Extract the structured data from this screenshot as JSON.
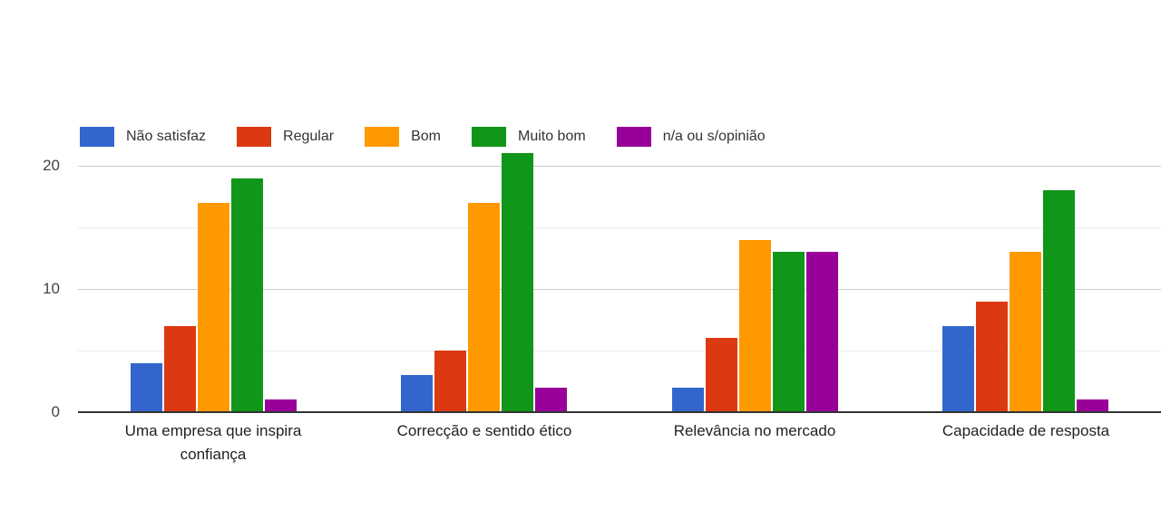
{
  "chart_data": {
    "type": "bar",
    "title": "",
    "xlabel": "",
    "ylabel": "",
    "legend_position": "top",
    "grid": true,
    "categories": [
      "Uma empresa que inspira confiança",
      "Correcção e sentido ético",
      "Relevância no mercado",
      "Capacidade de resposta"
    ],
    "series": [
      {
        "name": "Não satisfaz",
        "color": "#3366cc",
        "values": [
          4,
          3,
          2,
          7
        ]
      },
      {
        "name": "Regular",
        "color": "#dc3912",
        "values": [
          7,
          5,
          6,
          9
        ]
      },
      {
        "name": "Bom",
        "color": "#ff9900",
        "values": [
          17,
          17,
          14,
          13
        ]
      },
      {
        "name": "Muito bom",
        "color": "#109618",
        "values": [
          19,
          21,
          13,
          18
        ]
      },
      {
        "name": "n/a ou s/opinião",
        "color": "#990099",
        "values": [
          1,
          2,
          13,
          1
        ]
      }
    ],
    "y_axis": {
      "tick_labels": [
        0,
        10,
        20
      ],
      "gridline_values": [
        5,
        10,
        15,
        20
      ],
      "ylim": [
        0,
        21.7
      ]
    },
    "colors": {
      "major_gridline": "#cccccc",
      "minor_gridline": "#ebebeb",
      "baseline": "#333333",
      "tick_text": "#444444",
      "category_text": "#222222",
      "legend_text": "#333333"
    }
  }
}
